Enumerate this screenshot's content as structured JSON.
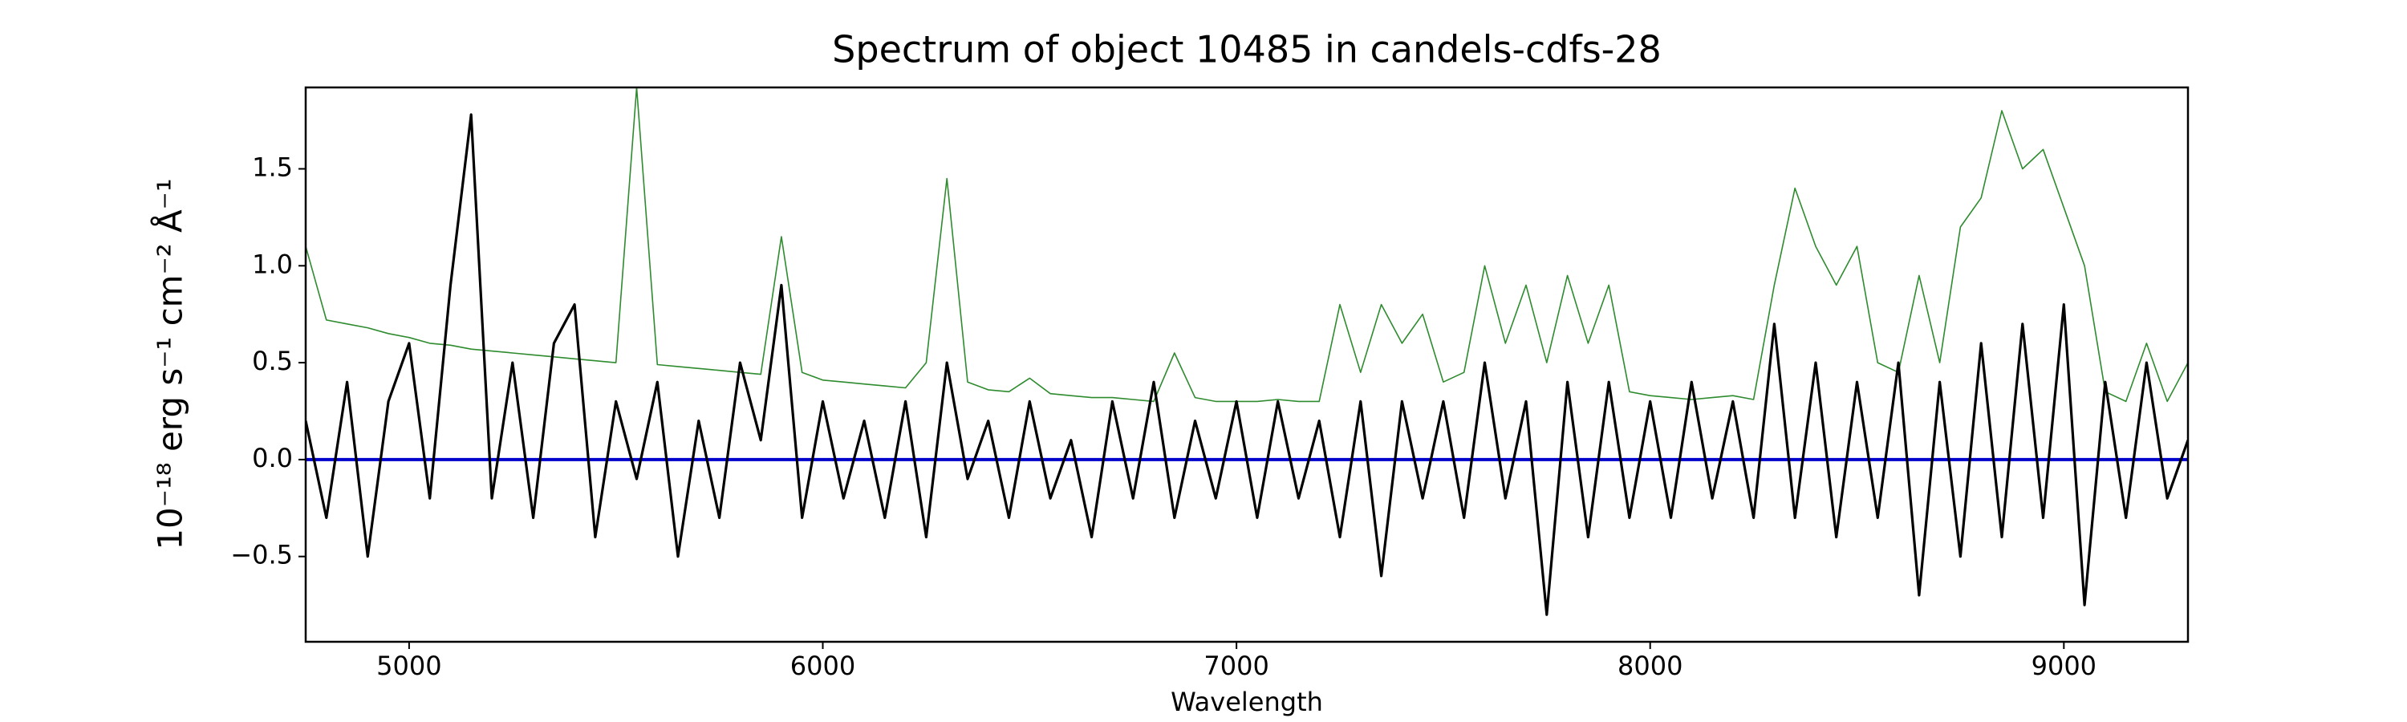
{
  "chart_data": {
    "type": "line",
    "title": "Spectrum of object 10485 in candels-cdfs-28",
    "x_label": "Wavelength",
    "y_label": "10⁻¹⁸ erg s⁻¹ cm⁻² Å⁻¹",
    "xlim": [
      4750,
      9300
    ],
    "ylim": [
      -0.94,
      1.92
    ],
    "xticks": [
      5000,
      6000,
      7000,
      8000,
      9000
    ],
    "yticks": [
      {
        "value": -0.5,
        "label": "−0.5"
      },
      {
        "value": 0,
        "label": "0.0"
      },
      0.5,
      {
        "value": 1,
        "label": "1.0"
      },
      1.5
    ],
    "grid": false,
    "x": [
      4750,
      4800,
      4850,
      4900,
      4950,
      5000,
      5050,
      5100,
      5150,
      5200,
      5250,
      5300,
      5350,
      5400,
      5450,
      5500,
      5550,
      5600,
      5650,
      5700,
      5750,
      5800,
      5850,
      5900,
      5950,
      6000,
      6050,
      6100,
      6150,
      6200,
      6250,
      6300,
      6350,
      6400,
      6450,
      6500,
      6550,
      6600,
      6650,
      6700,
      6750,
      6800,
      6850,
      6900,
      6950,
      7000,
      7050,
      7100,
      7150,
      7200,
      7250,
      7300,
      7350,
      7400,
      7450,
      7500,
      7550,
      7600,
      7650,
      7700,
      7750,
      7800,
      7850,
      7900,
      7950,
      8000,
      8050,
      8100,
      8150,
      8200,
      8250,
      8300,
      8350,
      8400,
      8450,
      8500,
      8550,
      8600,
      8650,
      8700,
      8750,
      8800,
      8850,
      8900,
      8950,
      9000,
      9050,
      9100,
      9150,
      9200,
      9250,
      9300
    ],
    "series": [
      {
        "color": "#2e8b2e",
        "width": 1.6,
        "values": [
          1.1,
          0.72,
          0.7,
          0.68,
          0.65,
          0.63,
          0.6,
          0.59,
          0.57,
          0.56,
          0.55,
          0.54,
          0.53,
          0.52,
          0.51,
          0.5,
          1.92,
          0.49,
          0.48,
          0.47,
          0.46,
          0.45,
          0.44,
          1.15,
          0.45,
          0.41,
          0.4,
          0.39,
          0.38,
          0.37,
          0.5,
          1.45,
          0.4,
          0.36,
          0.35,
          0.42,
          0.34,
          0.33,
          0.32,
          0.32,
          0.31,
          0.3,
          0.55,
          0.32,
          0.3,
          0.3,
          0.3,
          0.31,
          0.3,
          0.3,
          0.8,
          0.45,
          0.8,
          0.6,
          0.75,
          0.4,
          0.45,
          1.0,
          0.6,
          0.9,
          0.5,
          0.95,
          0.6,
          0.9,
          0.35,
          0.33,
          0.32,
          0.31,
          0.32,
          0.33,
          0.31,
          0.9,
          1.4,
          1.1,
          0.9,
          1.1,
          0.5,
          0.45,
          0.95,
          0.5,
          1.2,
          1.35,
          1.8,
          1.5,
          1.6,
          1.3,
          1.0,
          0.35,
          0.3,
          0.6,
          0.3,
          0.5
        ]
      },
      {
        "color": "#0000cc",
        "width": 4,
        "values": [
          0,
          0,
          0,
          0,
          0,
          0,
          0,
          0,
          0,
          0,
          0,
          0,
          0,
          0,
          0,
          0,
          0,
          0,
          0,
          0,
          0,
          0,
          0,
          0,
          0,
          0,
          0,
          0,
          0,
          0,
          0,
          0,
          0,
          0,
          0,
          0,
          0,
          0,
          0,
          0,
          0,
          0,
          0,
          0,
          0,
          0,
          0,
          0,
          0,
          0,
          0,
          0,
          0,
          0,
          0,
          0,
          0,
          0,
          0,
          0,
          0,
          0,
          0,
          0,
          0,
          0,
          0,
          0,
          0,
          0,
          0,
          0,
          0,
          0,
          0,
          0,
          0,
          0,
          0,
          0,
          0,
          0,
          0,
          0,
          0,
          0,
          0,
          0,
          0,
          0,
          0,
          0
        ]
      },
      {
        "color": "#000000",
        "width": 3.2,
        "values": [
          0.2,
          -0.3,
          0.4,
          -0.5,
          0.3,
          0.6,
          -0.2,
          0.9,
          1.78,
          -0.2,
          0.5,
          -0.3,
          0.6,
          0.8,
          -0.4,
          0.3,
          -0.1,
          0.4,
          -0.5,
          0.2,
          -0.3,
          0.5,
          0.1,
          0.9,
          -0.3,
          0.3,
          -0.2,
          0.2,
          -0.3,
          0.3,
          -0.4,
          0.5,
          -0.1,
          0.2,
          -0.3,
          0.3,
          -0.2,
          0.1,
          -0.4,
          0.3,
          -0.2,
          0.4,
          -0.3,
          0.2,
          -0.2,
          0.3,
          -0.3,
          0.3,
          -0.2,
          0.2,
          -0.4,
          0.3,
          -0.6,
          0.3,
          -0.2,
          0.3,
          -0.3,
          0.5,
          -0.2,
          0.3,
          -0.8,
          0.4,
          -0.4,
          0.4,
          -0.3,
          0.3,
          -0.3,
          0.4,
          -0.2,
          0.3,
          -0.3,
          0.7,
          -0.3,
          0.5,
          -0.4,
          0.4,
          -0.3,
          0.5,
          -0.7,
          0.4,
          -0.5,
          0.6,
          -0.4,
          0.7,
          -0.3,
          0.8,
          -0.75,
          0.4,
          -0.3,
          0.5,
          -0.2,
          0.1
        ]
      }
    ]
  }
}
